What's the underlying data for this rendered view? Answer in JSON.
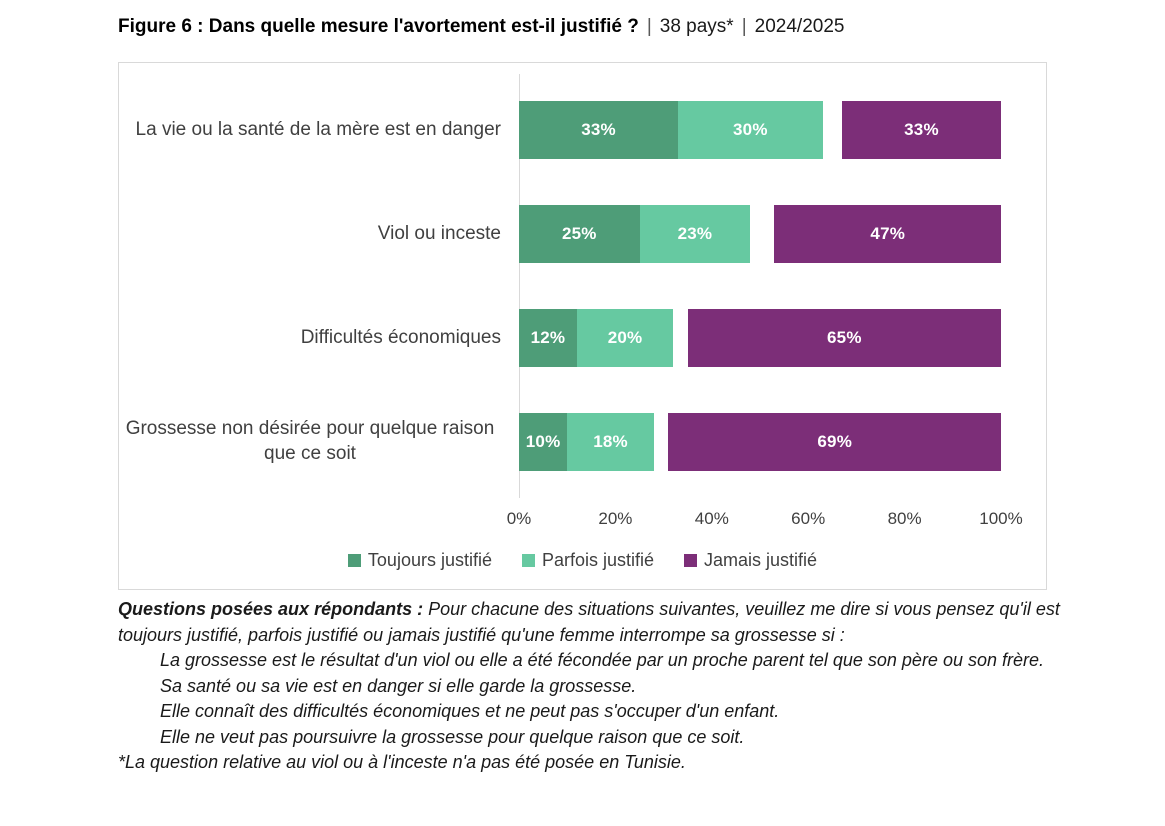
{
  "title": {
    "main": "Figure 6 : Dans quelle mesure l'avortement est-il justifié ?",
    "sep1": "|",
    "subtitle1": "38 pays*",
    "sep2": "|",
    "subtitle2": "2024/2025"
  },
  "colors": {
    "toujours": "#4e9d78",
    "parfois": "#66c9a1",
    "jamais": "#7c2e78",
    "axis_line": "#d9d9d9",
    "box_border": "#d9d9d9",
    "label_text": "#404040",
    "value_text": "#ffffff"
  },
  "chart_data": {
    "type": "bar",
    "orientation": "horizontal-stacked",
    "title": "Dans quelle mesure l'avortement est-il justifié ?",
    "categories": [
      "La vie ou la santé de la mère est en danger",
      "Viol ou inceste",
      "Difficultés économiques",
      "Grossesse non désirée pour quelque raison que ce soit"
    ],
    "series": [
      {
        "name": "Toujours justifié",
        "color": "#4e9d78",
        "values": [
          33,
          25,
          12,
          10
        ],
        "align": "left"
      },
      {
        "name": "Parfois justifié",
        "color": "#66c9a1",
        "values": [
          30,
          23,
          20,
          18
        ],
        "align": "left"
      },
      {
        "name": "Jamais justifié",
        "color": "#7c2e78",
        "values": [
          33,
          47,
          65,
          69
        ],
        "align": "right"
      }
    ],
    "value_suffix": "%",
    "x_ticks": [
      "0%",
      "20%",
      "40%",
      "60%",
      "80%",
      "100%"
    ],
    "xlim": [
      0,
      100
    ],
    "grid": "off",
    "legend_position": "bottom",
    "note_layout": "Jamais justifié segments are right-aligned to 100%; gap between stacks is the unlabeled remainder"
  },
  "footnotes": {
    "intro_label": "Questions posées aux répondants :",
    "intro_text": "Pour chacune des situations suivantes, veuillez me dire si vous pensez qu'il est toujours justifié, parfois justifié ou jamais justifié qu'une femme interrompe sa grossesse si :",
    "items": [
      "La grossesse est le résultat d'un viol ou elle a été fécondée par un proche parent tel que son père ou son frère.",
      "Sa santé ou sa vie est en danger si elle garde la grossesse.",
      "Elle connaît des difficultés économiques et ne peut pas s'occuper d'un enfant.",
      "Elle ne veut pas poursuivre la grossesse pour quelque raison que ce soit."
    ],
    "asterisk": "*La question relative au viol ou à l'inceste n'a pas été posée en Tunisie."
  }
}
